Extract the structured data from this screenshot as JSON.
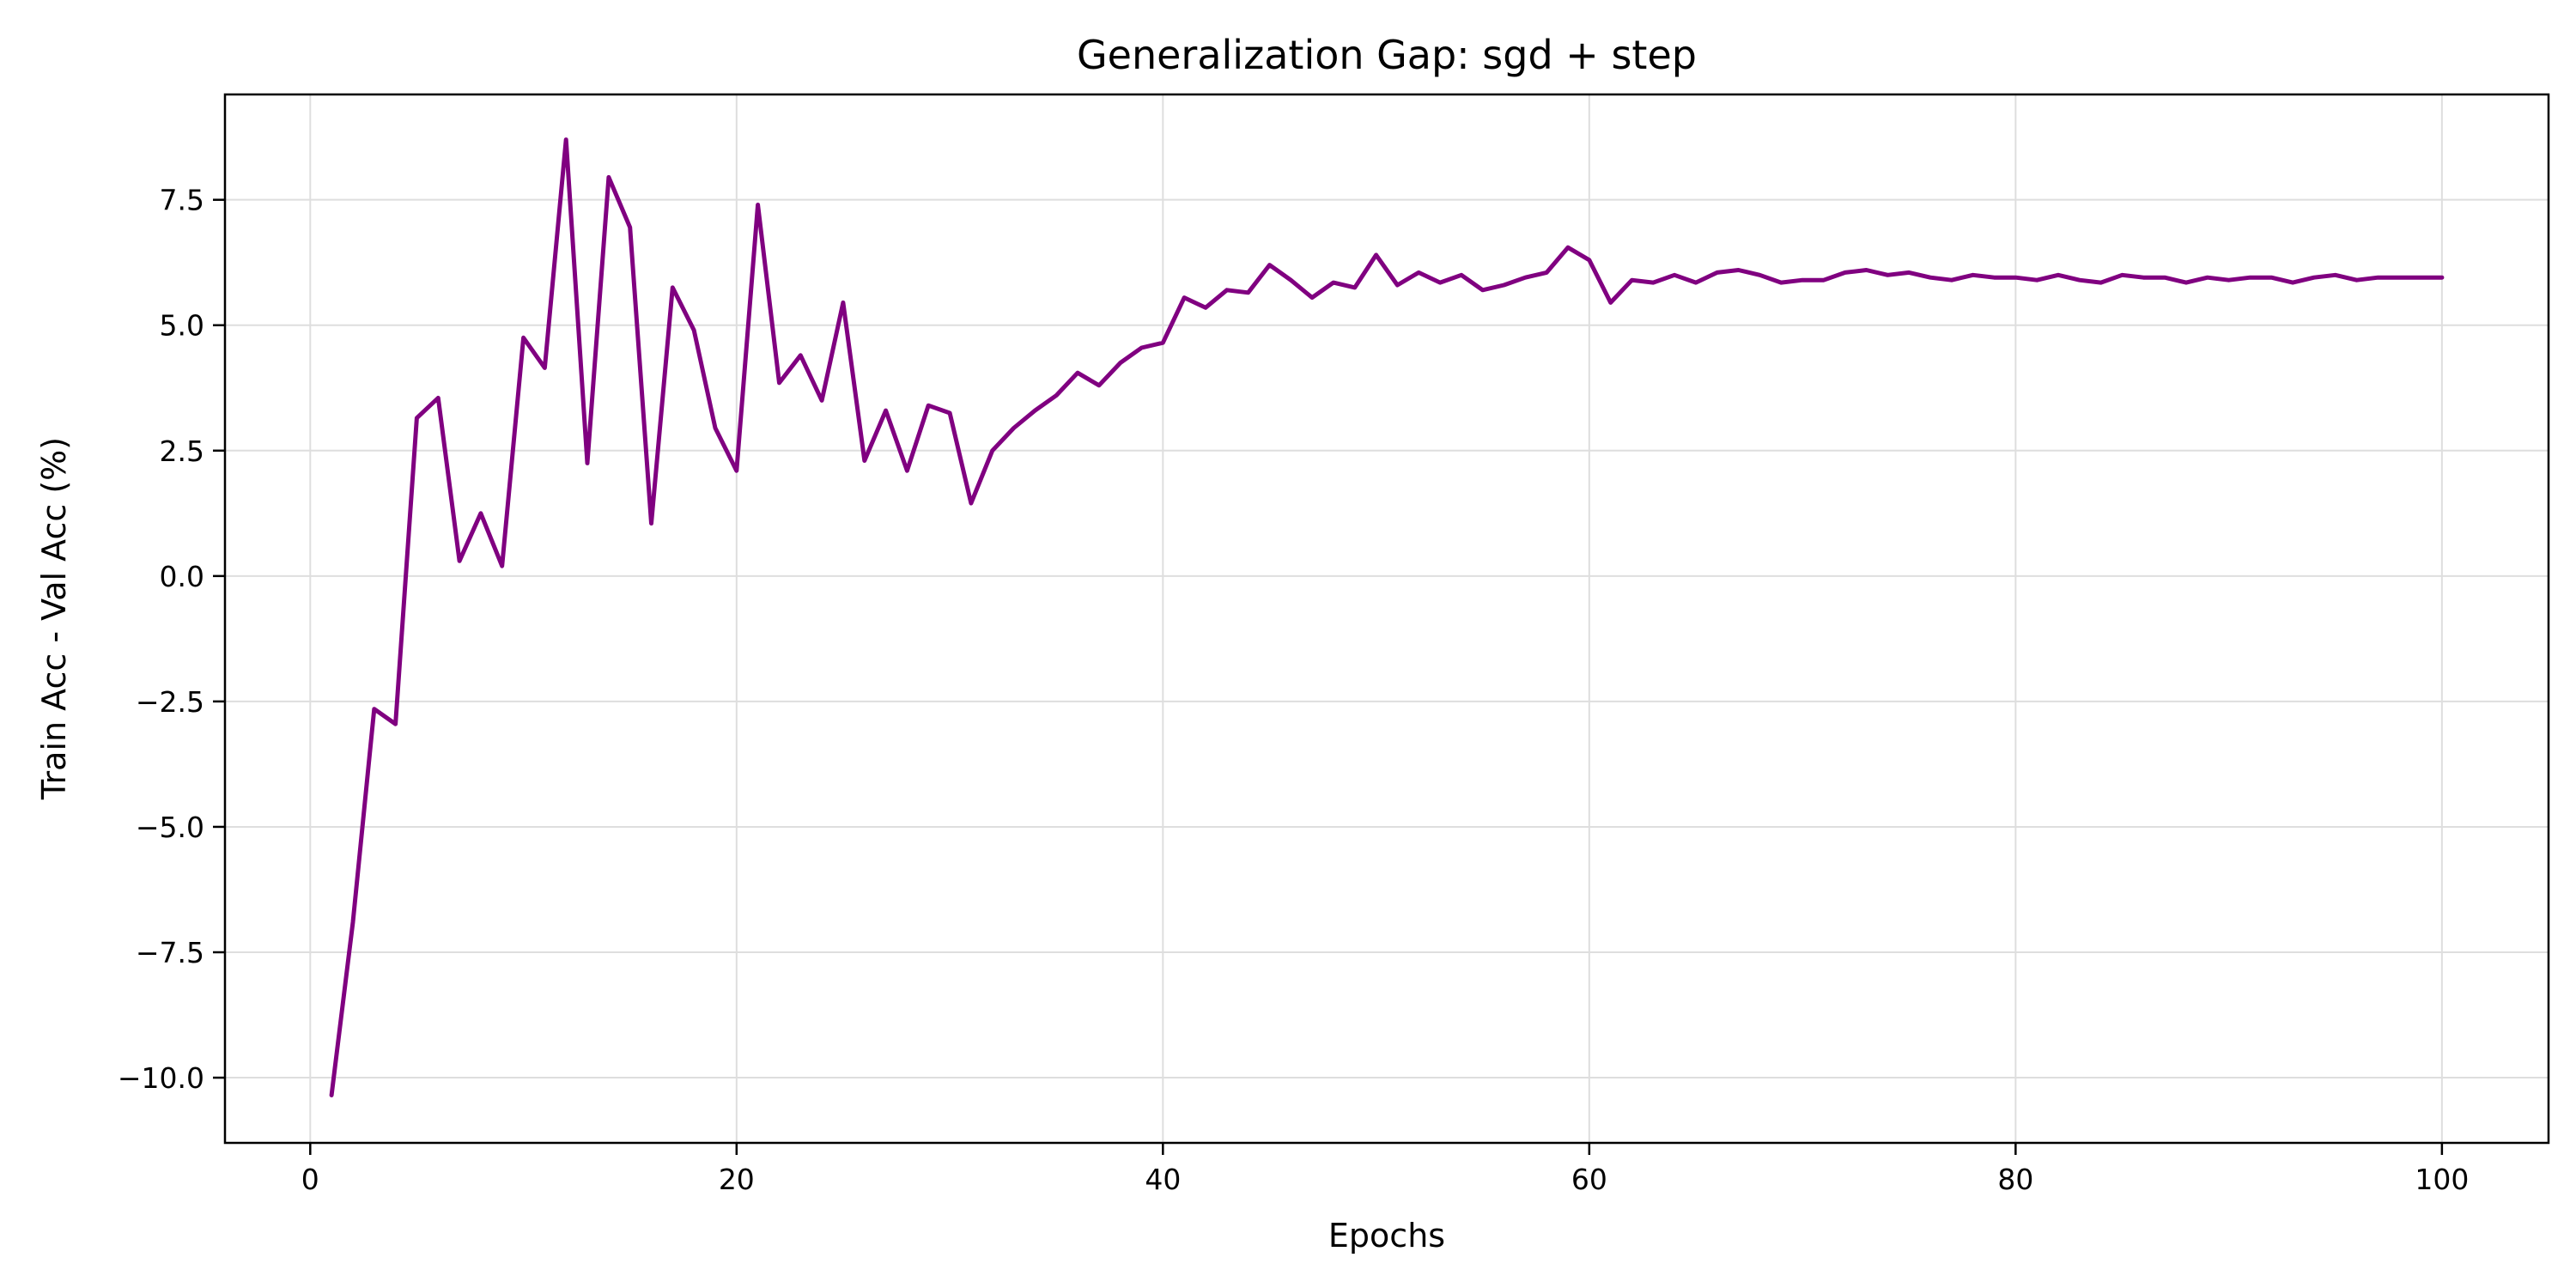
{
  "chart_data": {
    "type": "line",
    "title": "Generalization Gap: sgd + step",
    "xlabel": "Epochs",
    "ylabel": "Train Acc - Val Acc (%)",
    "xlim": [
      -4,
      105
    ],
    "ylim": [
      -11.3,
      9.6
    ],
    "grid": true,
    "legend": "none",
    "x_ticks": [
      0,
      20,
      40,
      60,
      80,
      100
    ],
    "x_tick_labels": [
      "0",
      "20",
      "40",
      "60",
      "80",
      "100"
    ],
    "y_ticks": [
      7.5,
      5.0,
      2.5,
      0.0,
      -2.5,
      -5.0,
      -7.5,
      -10.0
    ],
    "y_tick_labels": [
      "7.5",
      "5.0",
      "2.5",
      "0.0",
      "−2.5",
      "−5.0",
      "−7.5",
      "−10.0"
    ],
    "colors": {
      "line": "#800080",
      "grid": "#dedede",
      "axes": "#000000"
    },
    "series": [
      {
        "x": [
          1,
          2,
          3,
          4,
          5,
          6,
          7,
          8,
          9,
          10,
          11,
          12,
          13,
          14,
          15,
          16,
          17,
          18,
          19,
          20,
          21,
          22,
          23,
          24,
          25,
          26,
          27,
          28,
          29,
          30,
          31,
          32,
          33,
          34,
          35,
          36,
          37,
          38,
          39,
          40,
          41,
          42,
          43,
          44,
          45,
          46,
          47,
          48,
          49,
          50,
          51,
          52,
          53,
          54,
          55,
          56,
          57,
          58,
          59,
          60,
          61,
          62,
          63,
          64,
          65,
          66,
          67,
          68,
          69,
          70,
          71,
          72,
          73,
          74,
          75,
          76,
          77,
          78,
          79,
          80,
          81,
          82,
          83,
          84,
          85,
          86,
          87,
          88,
          89,
          90,
          91,
          92,
          93,
          94,
          95,
          96,
          97,
          98,
          99,
          100
        ],
        "y": [
          -10.35,
          -6.9,
          -2.65,
          -2.95,
          3.15,
          3.55,
          0.3,
          1.25,
          0.2,
          4.75,
          4.15,
          8.7,
          2.25,
          7.95,
          6.95,
          1.05,
          5.75,
          4.9,
          2.95,
          2.1,
          7.4,
          3.85,
          4.4,
          3.5,
          5.45,
          2.3,
          3.3,
          2.1,
          3.4,
          3.25,
          1.45,
          2.5,
          2.95,
          3.3,
          3.6,
          4.05,
          3.8,
          4.25,
          4.55,
          4.65,
          5.55,
          5.35,
          5.7,
          5.65,
          6.2,
          5.9,
          5.55,
          5.85,
          5.75,
          6.4,
          5.8,
          6.05,
          5.85,
          6.0,
          5.7,
          5.8,
          5.95,
          6.05,
          6.55,
          6.3,
          5.45,
          5.9,
          5.85,
          6.0,
          5.85,
          6.05,
          6.1,
          6.0,
          5.85,
          5.9,
          5.9,
          6.05,
          6.1,
          6.0,
          6.05,
          5.95,
          5.9,
          6.0,
          5.95,
          5.95,
          5.9,
          6.0,
          5.9,
          5.85,
          6.0,
          5.95,
          5.95,
          5.85,
          5.95,
          5.9,
          5.95,
          5.95,
          5.85,
          5.95,
          6.0,
          5.9,
          5.95,
          5.95,
          5.95,
          5.95
        ]
      }
    ]
  }
}
